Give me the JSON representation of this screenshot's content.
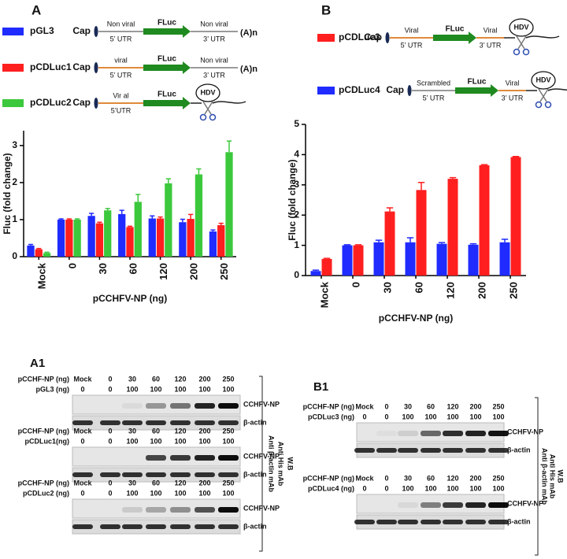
{
  "chart_data": [
    {
      "type": "bar",
      "y_label": "Fluc (fold change)",
      "x_label": "pCCHFV-NP (ng)",
      "categories": [
        "Mock",
        "0",
        "30",
        "60",
        "120",
        "200",
        "250"
      ],
      "series": [
        {
          "name": "pGL3",
          "color": "#1f2bff",
          "values": [
            0.3,
            1.0,
            1.1,
            1.15,
            1.03,
            0.93,
            0.68
          ],
          "errors": [
            0.03,
            0.02,
            0.07,
            0.1,
            0.07,
            0.08,
            0.04
          ]
        },
        {
          "name": "pCDLuc1",
          "color": "#ff1f1f",
          "values": [
            0.2,
            1.0,
            0.9,
            0.8,
            1.03,
            1.02,
            0.85
          ],
          "errors": [
            0.02,
            0.02,
            0.03,
            0.02,
            0.04,
            0.12,
            0.05
          ]
        },
        {
          "name": "pCDLuc2",
          "color": "#3cc83c",
          "values": [
            0.1,
            1.0,
            1.25,
            1.48,
            1.98,
            2.22,
            2.82
          ],
          "errors": [
            0.02,
            0.02,
            0.05,
            0.2,
            0.12,
            0.15,
            0.3
          ]
        }
      ],
      "ylim": [
        0,
        3.4
      ],
      "yticks": [
        0,
        1,
        2,
        3
      ]
    },
    {
      "type": "bar",
      "y_label": "Fluc (fold change)",
      "x_label": "pCCHFV-NP (ng)",
      "categories": [
        "Mock",
        "0",
        "30",
        "60",
        "120",
        "200",
        "250"
      ],
      "series": [
        {
          "name": "pCDLuc4",
          "color": "#1f2bff",
          "values": [
            0.15,
            1.0,
            1.1,
            1.1,
            1.05,
            1.02,
            1.1
          ],
          "errors": [
            0.03,
            0.02,
            0.07,
            0.15,
            0.04,
            0.03,
            0.1
          ]
        },
        {
          "name": "pCDLuc3",
          "color": "#ff1f1f",
          "values": [
            0.55,
            1.0,
            2.12,
            2.83,
            3.2,
            3.65,
            3.92
          ],
          "errors": [
            0.02,
            0.02,
            0.12,
            0.25,
            0.04,
            0.02,
            0.02
          ]
        }
      ],
      "ylim": [
        0,
        5
      ],
      "yticks": [
        0,
        1,
        2,
        3,
        4,
        5
      ]
    }
  ],
  "panels": [
    {
      "label": "A",
      "constructs": [
        {
          "cap": "Cap",
          "utr5_type": "Non viral",
          "utr5": "5’ UTR",
          "orf": "FLuc",
          "utr3_type": "Non viral",
          "utr3": "3’ UTR",
          "tail": "(A)n"
        },
        {
          "cap": "Cap",
          "utr5_type": "viral",
          "utr5": "5’ UTR",
          "orf": "FLuc",
          "utr3_type": "Non viral",
          "utr3": "3’ UTR",
          "tail": "(A)n"
        },
        {
          "cap": "Cap",
          "utr5_type": "Vir al",
          "utr5": "5’UTR",
          "orf": "FLuc",
          "ribozyme": "HDV"
        }
      ]
    },
    {
      "label": "B",
      "constructs": [
        {
          "cap": "Cap",
          "utr5_type": "Viral",
          "utr5": "5’ UTR",
          "orf": "FLuc",
          "utr3_type": "Viral",
          "utr3": "3’ UTR",
          "ribozyme": "HDV"
        },
        {
          "cap": "Cap",
          "utr5_type": "Scrambled",
          "utr5": "5’ UTR",
          "orf": "FLuc",
          "utr3_type": "Viral",
          "utr3": "3’ UTR",
          "ribozyme": "HDV"
        }
      ]
    }
  ],
  "blot_panels": [
    {
      "label": "A1",
      "detection": [
        "W.B",
        "Anti His mAb",
        "Anti β-actin mAb"
      ],
      "blots": [
        {
          "row_labels": [
            "pCCHF-NP (ng)",
            "pGL3 (ng)"
          ],
          "np": [
            "Mock",
            0,
            30,
            60,
            120,
            200,
            250
          ],
          "plasmid": [
            0,
            0,
            100,
            100,
            100,
            100,
            100
          ],
          "bands": [
            "CCHFV-NP",
            "β-actin"
          ]
        },
        {
          "row_labels": [
            "pCCHF-NP (ng)",
            "pCDLuc1(ng)"
          ],
          "np": [
            "Mock",
            0,
            30,
            60,
            120,
            200,
            250
          ],
          "plasmid": [
            0,
            0,
            100,
            100,
            100,
            100,
            100
          ],
          "bands": [
            "CCHFV-NP",
            "β-actin"
          ]
        },
        {
          "row_labels": [
            "pCCHF-NP (ng)",
            "pCDLuc2 (ng)"
          ],
          "np": [
            "Mock",
            0,
            30,
            60,
            120,
            200,
            250
          ],
          "plasmid": [
            0,
            0,
            100,
            100,
            100,
            100,
            100
          ],
          "bands": [
            "CCHFV-NP",
            "β-actin"
          ]
        }
      ]
    },
    {
      "label": "B1",
      "detection": [
        "W.B",
        "Anti His mAb",
        "Anti β-actin mAb"
      ],
      "blots": [
        {
          "row_labels": [
            "pCCHF-NP (ng)",
            "pCDLuc3 (ng)"
          ],
          "np": [
            "Mock",
            0,
            30,
            60,
            120,
            200,
            250
          ],
          "plasmid": [
            0,
            0,
            100,
            100,
            100,
            100,
            100
          ],
          "bands": [
            "CCHFV-NP",
            "β-actin"
          ]
        },
        {
          "row_labels": [
            "pCCHF-NP (ng)",
            "pCDLuc4 (ng)"
          ],
          "np": [
            "Mock",
            0,
            30,
            60,
            120,
            200,
            250
          ],
          "plasmid": [
            0,
            0,
            100,
            100,
            100,
            100,
            100
          ],
          "bands": [
            "CCHFV-NP",
            "β-actin"
          ]
        }
      ]
    }
  ]
}
